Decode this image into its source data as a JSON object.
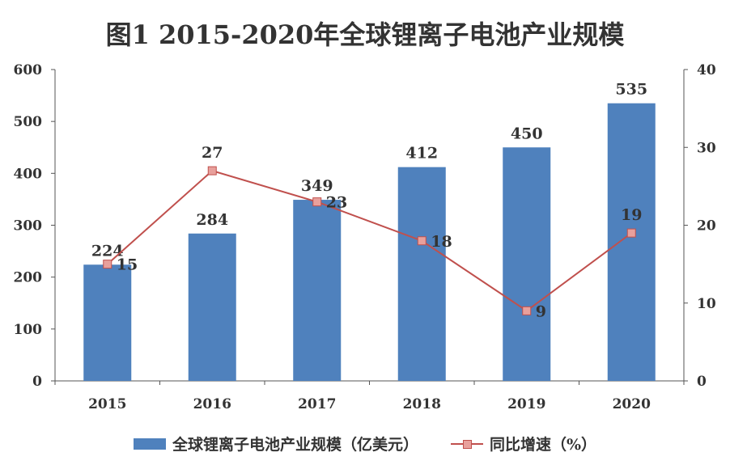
{
  "chart_data": {
    "type": "bar",
    "title": "图1  2015-2020年全球锂离子电池产业规模",
    "categories": [
      "2015",
      "2016",
      "2017",
      "2018",
      "2019",
      "2020"
    ],
    "series": [
      {
        "name": "全球锂离子电池产业规模（亿美元）",
        "type": "bar",
        "axis": "left",
        "color": "#4f81bd",
        "values": [
          224,
          284,
          349,
          412,
          450,
          535
        ],
        "labels": [
          "224",
          "284",
          "349",
          "412",
          "450",
          "535"
        ]
      },
      {
        "name": "同比增速（%）",
        "type": "line",
        "axis": "right",
        "color": "#c0504d",
        "marker_color": "#e8a09c",
        "values": [
          15,
          27,
          23,
          18,
          9,
          19
        ],
        "labels": [
          "15",
          "27",
          "23",
          "18",
          "9",
          "19"
        ]
      }
    ],
    "y_left": {
      "ylim": [
        0,
        600
      ],
      "ticks": [
        "0",
        "100",
        "200",
        "300",
        "400",
        "500",
        "600"
      ]
    },
    "y_right": {
      "ylim": [
        0,
        40
      ],
      "ticks": [
        "0",
        "10",
        "20",
        "30",
        "40"
      ]
    },
    "grid": false,
    "legend_position": "bottom"
  }
}
